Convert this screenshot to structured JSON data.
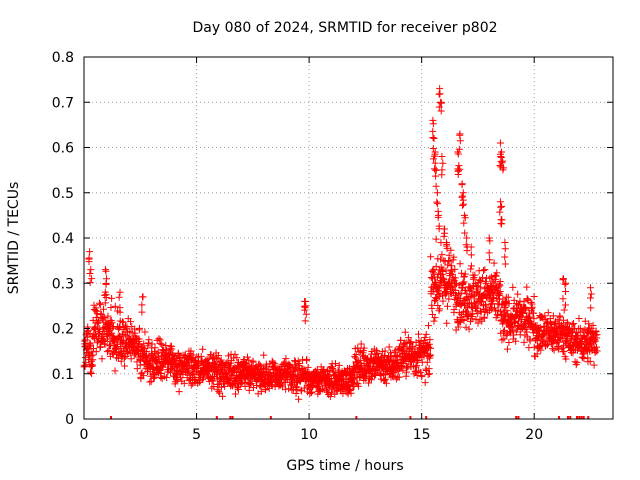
{
  "chart_data": {
    "type": "scatter",
    "title": "Day 080 of 2024, SRMTID for receiver p802",
    "xlabel": "GPS time / hours",
    "ylabel": "SRMTID / TECUs",
    "xlim": [
      0,
      23.5
    ],
    "ylim": [
      0,
      0.8
    ],
    "xticks": [
      0,
      5,
      10,
      15,
      20
    ],
    "xtick_labels": [
      "0",
      "5",
      "10",
      "15",
      "20"
    ],
    "yticks": [
      0,
      0.1,
      0.2,
      0.3,
      0.4,
      0.5,
      0.6,
      0.7,
      0.8
    ],
    "ytick_labels": [
      "0",
      "0.1",
      "0.2",
      "0.3",
      "0.4",
      "0.5",
      "0.6",
      "0.7",
      "0.8"
    ],
    "grid": true,
    "marker": "+",
    "color": "#ff0000",
    "baseline_x": [
      1.2,
      5.9,
      6.5,
      6.6,
      8.3,
      12.1,
      14.5,
      15.2,
      19.2,
      19.3,
      21.1,
      21.5,
      21.6,
      21.9,
      22.0,
      22.1,
      22.2,
      22.4
    ],
    "segments": [
      {
        "x0": 0.0,
        "x1": 0.4,
        "y": 0.15,
        "spread": 0.05
      },
      {
        "x0": 0.4,
        "x1": 1.3,
        "y": 0.2,
        "spread": 0.06
      },
      {
        "x0": 1.3,
        "x1": 2.5,
        "y": 0.17,
        "spread": 0.05
      },
      {
        "x0": 2.5,
        "x1": 4.0,
        "y": 0.13,
        "spread": 0.04
      },
      {
        "x0": 4.0,
        "x1": 6.0,
        "y": 0.11,
        "spread": 0.035
      },
      {
        "x0": 6.0,
        "x1": 8.0,
        "y": 0.1,
        "spread": 0.035
      },
      {
        "x0": 8.0,
        "x1": 10.0,
        "y": 0.095,
        "spread": 0.035
      },
      {
        "x0": 10.0,
        "x1": 12.0,
        "y": 0.085,
        "spread": 0.03
      },
      {
        "x0": 12.0,
        "x1": 14.0,
        "y": 0.12,
        "spread": 0.04
      },
      {
        "x0": 14.0,
        "x1": 15.4,
        "y": 0.14,
        "spread": 0.045
      },
      {
        "x0": 15.4,
        "x1": 16.5,
        "y": 0.3,
        "spread": 0.07
      },
      {
        "x0": 16.5,
        "x1": 18.5,
        "y": 0.27,
        "spread": 0.06
      },
      {
        "x0": 18.5,
        "x1": 20.0,
        "y": 0.22,
        "spread": 0.05
      },
      {
        "x0": 20.0,
        "x1": 21.5,
        "y": 0.19,
        "spread": 0.045
      },
      {
        "x0": 21.5,
        "x1": 22.8,
        "y": 0.17,
        "spread": 0.045
      }
    ],
    "peaks": [
      {
        "x": 0.25,
        "y": 0.37
      },
      {
        "x": 0.3,
        "y": 0.33
      },
      {
        "x": 0.95,
        "y": 0.33
      },
      {
        "x": 1.0,
        "y": 0.31
      },
      {
        "x": 1.6,
        "y": 0.28
      },
      {
        "x": 2.6,
        "y": 0.27
      },
      {
        "x": 9.8,
        "y": 0.26
      },
      {
        "x": 9.85,
        "y": 0.25
      },
      {
        "x": 15.5,
        "y": 0.66
      },
      {
        "x": 15.55,
        "y": 0.62
      },
      {
        "x": 15.6,
        "y": 0.59
      },
      {
        "x": 15.65,
        "y": 0.55
      },
      {
        "x": 15.7,
        "y": 0.5
      },
      {
        "x": 15.75,
        "y": 0.45
      },
      {
        "x": 15.8,
        "y": 0.73
      },
      {
        "x": 15.85,
        "y": 0.7
      },
      {
        "x": 15.9,
        "y": 0.58
      },
      {
        "x": 16.0,
        "y": 0.42
      },
      {
        "x": 16.1,
        "y": 0.39
      },
      {
        "x": 16.6,
        "y": 0.59
      },
      {
        "x": 16.65,
        "y": 0.56
      },
      {
        "x": 16.7,
        "y": 0.63
      },
      {
        "x": 16.8,
        "y": 0.52
      },
      {
        "x": 16.85,
        "y": 0.5
      },
      {
        "x": 16.9,
        "y": 0.45
      },
      {
        "x": 17.0,
        "y": 0.4
      },
      {
        "x": 17.2,
        "y": 0.38
      },
      {
        "x": 18.0,
        "y": 0.4
      },
      {
        "x": 18.5,
        "y": 0.61
      },
      {
        "x": 18.55,
        "y": 0.59
      },
      {
        "x": 18.6,
        "y": 0.57
      },
      {
        "x": 18.5,
        "y": 0.48
      },
      {
        "x": 18.55,
        "y": 0.47
      },
      {
        "x": 18.7,
        "y": 0.39
      },
      {
        "x": 22.5,
        "y": 0.29
      },
      {
        "x": 21.3,
        "y": 0.31
      },
      {
        "x": 21.4,
        "y": 0.3
      }
    ]
  }
}
